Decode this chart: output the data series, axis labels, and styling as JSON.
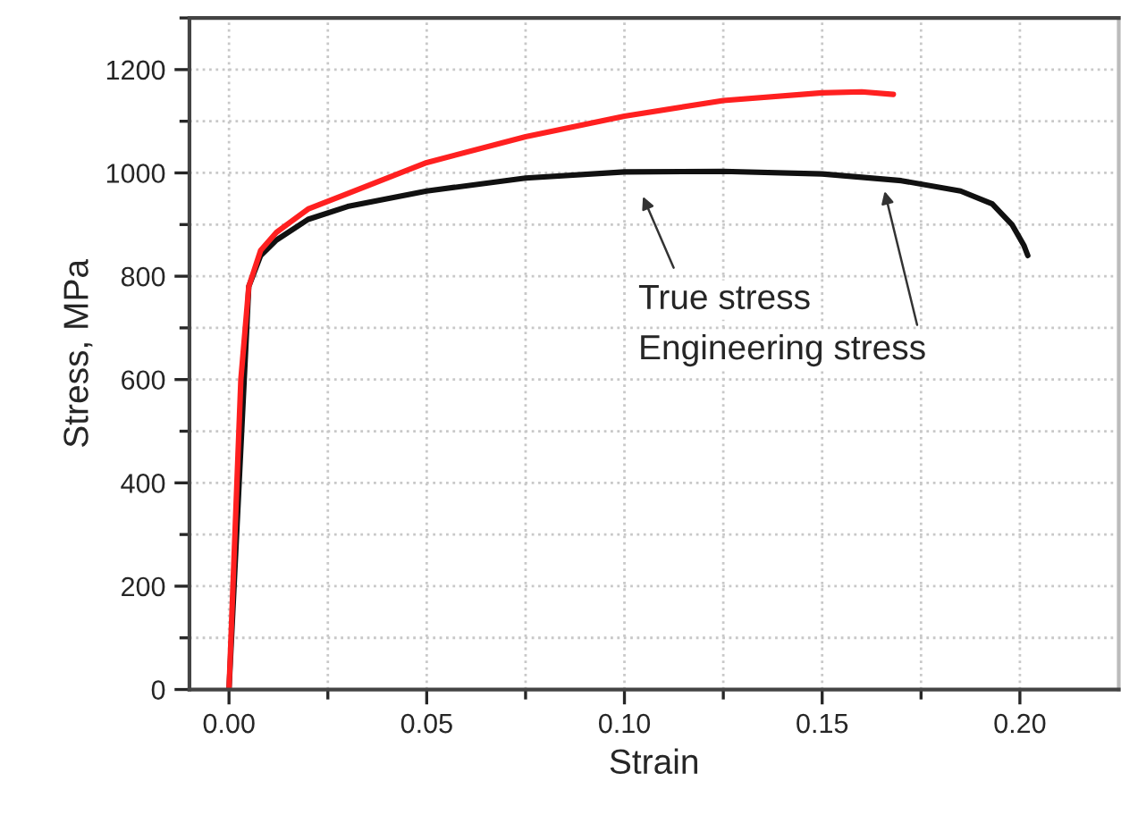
{
  "chart_data": {
    "type": "line",
    "xlabel": "Strain",
    "ylabel": "Stress, MPa",
    "xlim": [
      -0.01,
      0.225
    ],
    "ylim": [
      0,
      1300
    ],
    "xticks": [
      {
        "value": 0,
        "label": "0.00"
      },
      {
        "value": 0.05,
        "label": "0.05"
      },
      {
        "value": 0.1,
        "label": "0.10"
      },
      {
        "value": 0.15,
        "label": "0.15"
      },
      {
        "value": 0.2,
        "label": "0.20"
      }
    ],
    "yticks": [
      0,
      200,
      400,
      600,
      800,
      1000,
      1200
    ],
    "grid": true,
    "legend": false,
    "marker": "none",
    "line_style": "solid",
    "series": [
      {
        "color": "#111111",
        "x": [
          0,
          0.005,
          0.008,
          0.012,
          0.02,
          0.03,
          0.05,
          0.075,
          0.1,
          0.125,
          0.15,
          0.17,
          0.185,
          0.193,
          0.198,
          0.201,
          0.202
        ],
        "values": [
          0,
          780,
          840,
          870,
          910,
          935,
          965,
          990,
          1002,
          1003,
          998,
          985,
          965,
          940,
          900,
          860,
          840
        ]
      },
      {
        "color": "#ff2020",
        "x": [
          0,
          0.001,
          0.002,
          0.003,
          0.005,
          0.008,
          0.012,
          0.02,
          0.03,
          0.05,
          0.075,
          0.1,
          0.125,
          0.15,
          0.16,
          0.168
        ],
        "values": [
          0,
          200,
          400,
          600,
          780,
          850,
          885,
          930,
          960,
          1020,
          1070,
          1110,
          1140,
          1155,
          1157,
          1152
        ]
      }
    ],
    "annotations": [
      "True stress",
      "Engineering stress"
    ]
  }
}
